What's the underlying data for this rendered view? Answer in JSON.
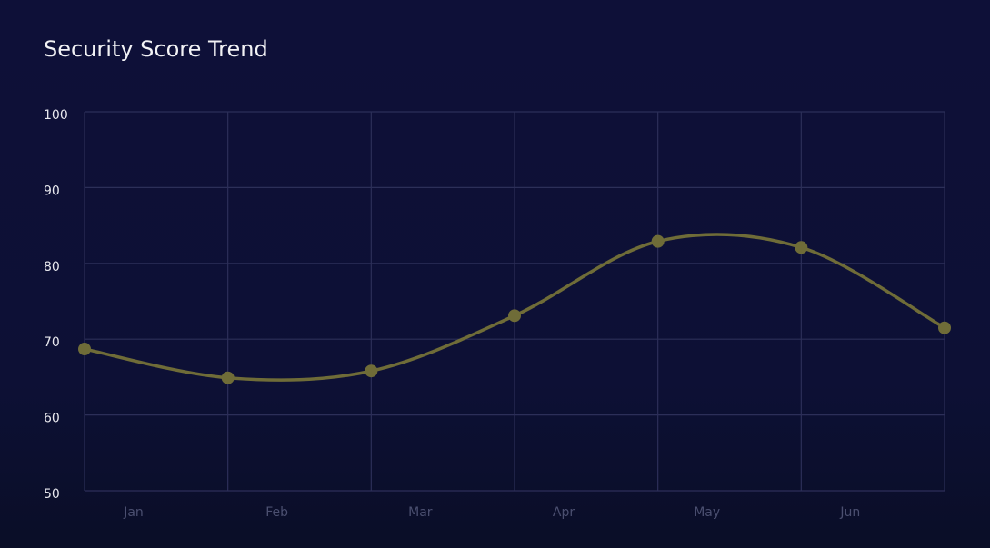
{
  "chart_data": {
    "type": "line",
    "title": "Security Score Trend",
    "categories": [
      "Jan",
      "Feb",
      "Mar",
      "Apr",
      "May",
      "Jun",
      null
    ],
    "series": [
      {
        "name": "Security Score",
        "color": "#6f6c38",
        "values": [
          68.7,
          64.9,
          65.8,
          73.1,
          82.9,
          82.1,
          71.5
        ]
      }
    ],
    "ylim": [
      50,
      100
    ],
    "yticks": [
      50,
      60,
      70,
      80,
      90,
      100
    ],
    "grid": true,
    "smooth": true
  }
}
